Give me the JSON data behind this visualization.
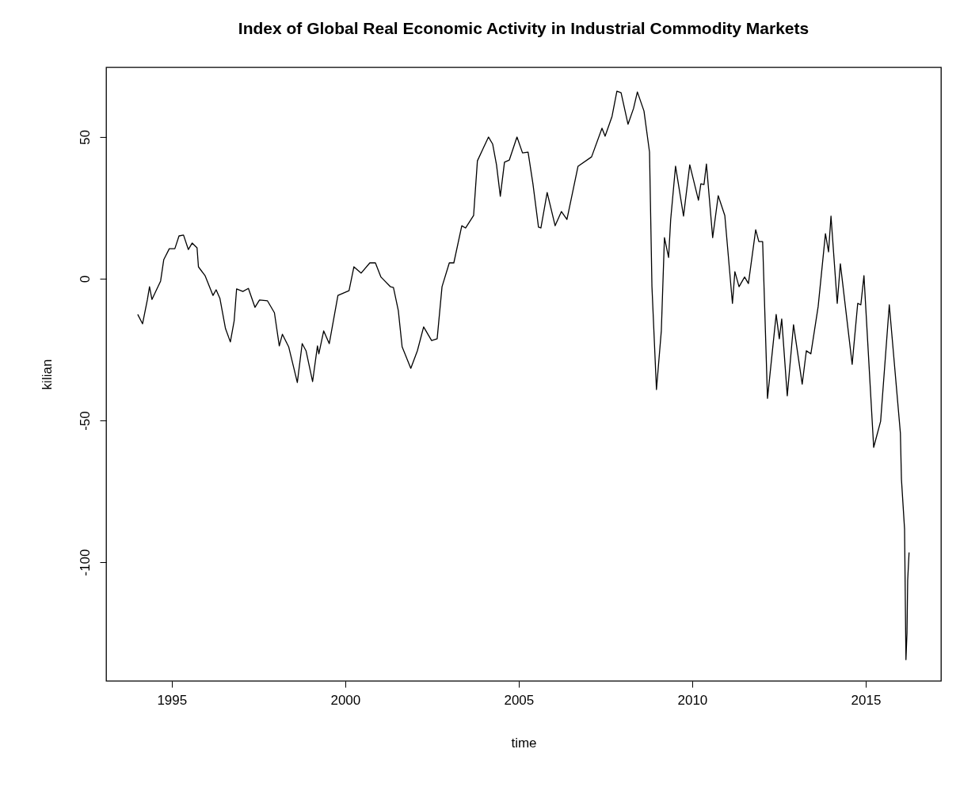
{
  "chart_data": {
    "type": "line",
    "title": "Index of Global Real Economic Activity in Industrial Commodity Markets",
    "xlabel": "time",
    "ylabel": "kilian",
    "x": [
      1994.02,
      1994.16,
      1994.3,
      1994.36,
      1994.43,
      1994.68,
      1994.77,
      1994.93,
      1995.09,
      1995.21,
      1995.34,
      1995.48,
      1995.59,
      1995.73,
      1995.77,
      1995.96,
      1996.19,
      1996.28,
      1996.39,
      1996.55,
      1996.69,
      1996.8,
      1996.87,
      1997.05,
      1997.21,
      1997.4,
      1997.53,
      1997.76,
      1997.96,
      1998.1,
      1998.19,
      1998.37,
      1998.62,
      1998.76,
      1998.87,
      1999.06,
      1999.2,
      1999.24,
      1999.38,
      1999.54,
      1999.79,
      2000.11,
      2000.25,
      2000.46,
      2000.71,
      2000.87,
      2001.03,
      2001.3,
      2001.39,
      2001.53,
      2001.64,
      2001.89,
      2002.08,
      2002.26,
      2002.49,
      2002.65,
      2002.79,
      2003.0,
      2003.13,
      2003.36,
      2003.47,
      2003.7,
      2003.81,
      2003.97,
      2004.13,
      2004.25,
      2004.36,
      2004.47,
      2004.59,
      2004.73,
      2004.95,
      2005.11,
      2005.27,
      2005.41,
      2005.57,
      2005.64,
      2005.82,
      2006.05,
      2006.23,
      2006.39,
      2006.71,
      2007.1,
      2007.4,
      2007.49,
      2007.69,
      2007.83,
      2007.95,
      2008.15,
      2008.31,
      2008.42,
      2008.61,
      2008.77,
      2008.84,
      2008.97,
      2009.11,
      2009.2,
      2009.32,
      2009.38,
      2009.52,
      2009.75,
      2009.93,
      2010.18,
      2010.25,
      2010.34,
      2010.41,
      2010.59,
      2010.75,
      2010.94,
      2011.16,
      2011.23,
      2011.35,
      2011.51,
      2011.62,
      2011.83,
      2011.92,
      2012.03,
      2012.17,
      2012.42,
      2012.51,
      2012.58,
      2012.74,
      2012.92,
      2013.17,
      2013.29,
      2013.42,
      2013.63,
      2013.84,
      2013.93,
      2014.0,
      2014.18,
      2014.27,
      2014.61,
      2014.77,
      2014.86,
      2014.95,
      2015.23,
      2015.43,
      2015.68,
      2016.0,
      2016.03,
      2016.12,
      2016.16,
      2016.19,
      2016.21,
      2016.25
    ],
    "series": [
      {
        "color": "#000000",
        "values": [
          -12.6,
          -15.9,
          -7.3,
          -2.8,
          -7.3,
          -0.8,
          6.7,
          10.6,
          10.6,
          15.1,
          15.4,
          10.3,
          12.6,
          10.9,
          4.2,
          1.1,
          -5.9,
          -3.9,
          -7.0,
          -17.6,
          -22.3,
          -14.8,
          -3.6,
          -4.5,
          -3.4,
          -10.1,
          -7.5,
          -7.8,
          -12.0,
          -23.7,
          -19.6,
          -24.0,
          -36.6,
          -22.9,
          -25.4,
          -36.3,
          -23.7,
          -26.5,
          -18.4,
          -22.9,
          -5.9,
          -4.2,
          4.2,
          2.0,
          5.6,
          5.6,
          0.6,
          -2.8,
          -3.1,
          -11.2,
          -24.0,
          -31.6,
          -25.4,
          -17.0,
          -21.8,
          -21.2,
          -2.8,
          5.6,
          5.6,
          18.7,
          17.9,
          22.3,
          41.6,
          45.8,
          50.0,
          47.5,
          40.2,
          29.1,
          41.1,
          41.9,
          50.0,
          44.4,
          44.7,
          33.5,
          18.2,
          17.9,
          30.4,
          18.7,
          23.7,
          20.9,
          39.7,
          43.0,
          53.1,
          50.3,
          57.3,
          66.2,
          65.6,
          54.5,
          60.1,
          65.9,
          59.2,
          44.7,
          -2.8,
          -39.1,
          -18.4,
          14.5,
          7.5,
          20.9,
          39.7,
          22.1,
          40.2,
          27.7,
          33.5,
          33.2,
          40.5,
          14.5,
          29.3,
          22.3,
          -8.7,
          2.5,
          -2.8,
          0.6,
          -1.7,
          17.3,
          13.1,
          13.1,
          -42.2,
          -12.6,
          -21.2,
          -14.2,
          -41.3,
          -16.2,
          -37.2,
          -25.4,
          -26.5,
          -9.8,
          15.9,
          9.5,
          22.1,
          -8.7,
          5.3,
          -30.2,
          -8.7,
          -9.2,
          1.1,
          -59.5,
          -50.3,
          -9.2,
          -54.5,
          -70.7,
          -88.3,
          -134.4,
          -125.0,
          -106.4,
          -96.6
        ]
      }
    ],
    "xlim": [
      1993.11,
      2017.17
    ],
    "ylim": [
      -141.9,
      74.6
    ],
    "xticks": [
      1995,
      2000,
      2005,
      2010,
      2015
    ],
    "yticks": [
      -100,
      -50,
      0,
      50
    ],
    "grid": false,
    "marker": "none",
    "line_style": "solid"
  }
}
